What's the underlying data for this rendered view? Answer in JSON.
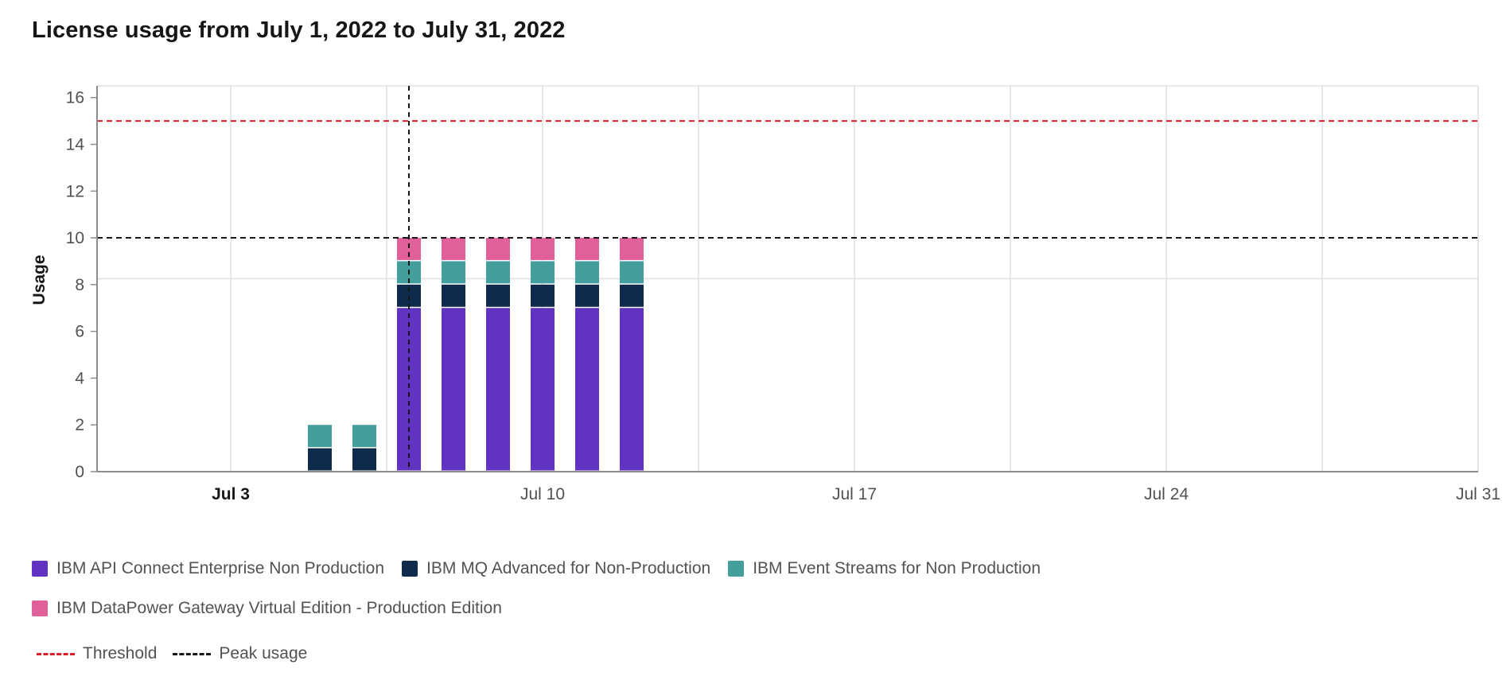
{
  "title": "License usage from July 1, 2022 to July 31, 2022",
  "colors": {
    "api_connect": "#6033c0",
    "mq": "#0f2b4b",
    "event_streams": "#449e9b",
    "datapower": "#e0619a",
    "threshold": "#da1e28",
    "peak": "#161616",
    "grid": "#e0e0e0",
    "axis": "#8d8d8d"
  },
  "legend": {
    "series": [
      {
        "label": "IBM API Connect Enterprise Non Production",
        "color": "#6033c0"
      },
      {
        "label": "IBM MQ Advanced for Non-Production",
        "color": "#0f2b4b"
      },
      {
        "label": "IBM Event Streams for Non Production",
        "color": "#449e9b"
      },
      {
        "label": "IBM DataPower Gateway Virtual Edition - Production Edition",
        "color": "#e0619a"
      }
    ],
    "lines": [
      {
        "label": "Threshold",
        "color": "#da1e28"
      },
      {
        "label": "Peak usage",
        "color": "#161616"
      }
    ]
  },
  "chart_data": {
    "type": "bar",
    "stacked": true,
    "title": "License usage from July 1, 2022 to July 31, 2022",
    "xlabel": "",
    "ylabel": "Usage",
    "ylim": [
      0,
      16.5
    ],
    "yticks": [
      0,
      2,
      4,
      6,
      8,
      10,
      12,
      14,
      16
    ],
    "x_range": [
      "2022-06-30",
      "2022-07-31"
    ],
    "xtick_labels": [
      {
        "date": "2022-07-03",
        "label": "Jul 3",
        "bold": true
      },
      {
        "date": "2022-07-10",
        "label": "Jul 10",
        "bold": false
      },
      {
        "date": "2022-07-17",
        "label": "Jul 17",
        "bold": false
      },
      {
        "date": "2022-07-24",
        "label": "Jul 24",
        "bold": false
      },
      {
        "date": "2022-07-31",
        "label": "Jul 31",
        "bold": false
      }
    ],
    "dates": [
      "2022-07-05",
      "2022-07-06",
      "2022-07-07",
      "2022-07-08",
      "2022-07-09",
      "2022-07-10",
      "2022-07-11",
      "2022-07-12"
    ],
    "series": [
      {
        "name": "IBM API Connect Enterprise Non Production",
        "color": "#6033c0",
        "values": [
          0,
          0,
          7,
          7,
          7,
          7,
          7,
          7
        ]
      },
      {
        "name": "IBM MQ Advanced for Non-Production",
        "color": "#0f2b4b",
        "values": [
          1,
          1,
          1,
          1,
          1,
          1,
          1,
          1
        ]
      },
      {
        "name": "IBM Event Streams for Non Production",
        "color": "#449e9b",
        "values": [
          1,
          1,
          1,
          1,
          1,
          1,
          1,
          1
        ]
      },
      {
        "name": "IBM DataPower Gateway Virtual Edition - Production Edition",
        "color": "#e0619a",
        "values": [
          0,
          0,
          1,
          1,
          1,
          1,
          1,
          1
        ]
      }
    ],
    "threshold": 15,
    "peak_usage": 10,
    "peak_date": "2022-07-07",
    "grid": true,
    "legend_position": "bottom-left"
  }
}
